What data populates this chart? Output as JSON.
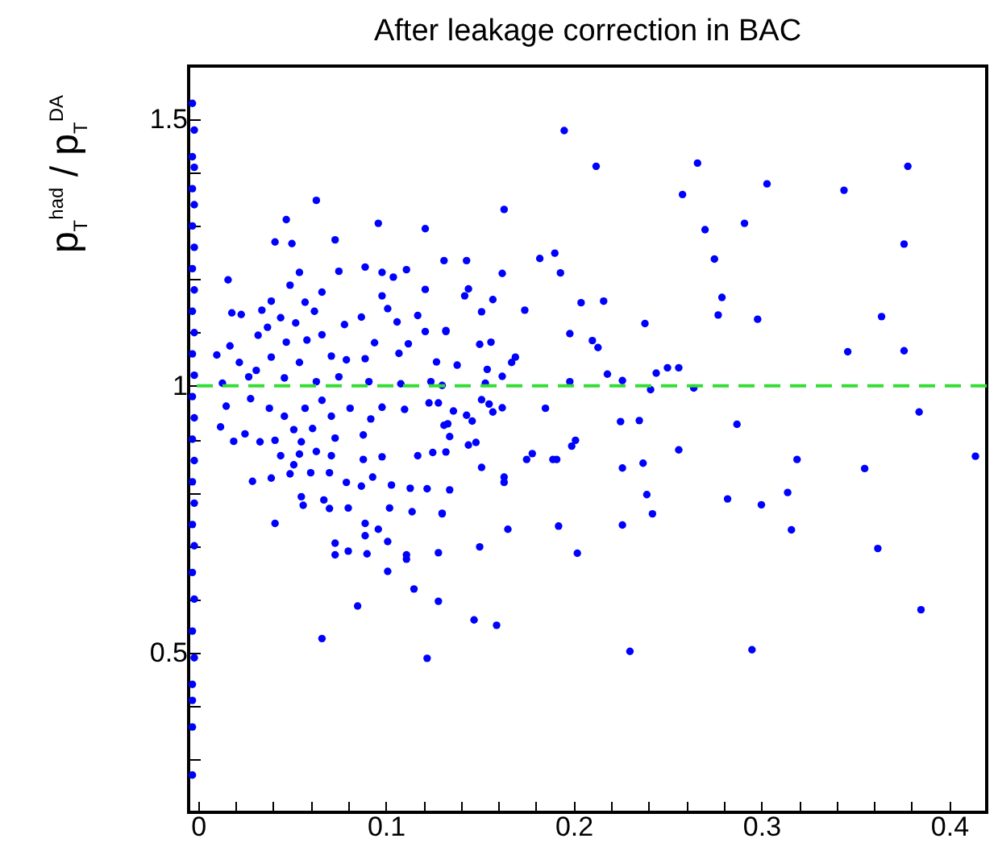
{
  "chart_data": {
    "type": "scatter",
    "title": "After leakage correction in BAC",
    "ylabel": "p$_{T}$$^{had}$ / p$_{T}$$^{DA}$",
    "xlim": [
      -0.005,
      0.42
    ],
    "ylim": [
      0.2,
      1.6
    ],
    "xticks": [
      0,
      {
        "value": 0.02,
        "label": null
      },
      {
        "value": 0.04,
        "label": null
      },
      {
        "value": 0.06,
        "label": null
      },
      {
        "value": 0.08,
        "label": null
      },
      0.1,
      {
        "value": 0.12,
        "label": null
      },
      {
        "value": 0.14,
        "label": null
      },
      {
        "value": 0.16,
        "label": null
      },
      {
        "value": 0.18,
        "label": null
      },
      0.2,
      {
        "value": 0.22,
        "label": null
      },
      {
        "value": 0.24,
        "label": null
      },
      {
        "value": 0.26,
        "label": null
      },
      {
        "value": 0.28,
        "label": null
      },
      0.3,
      {
        "value": 0.32,
        "label": null
      },
      {
        "value": 0.34,
        "label": null
      },
      {
        "value": 0.36,
        "label": null
      },
      {
        "value": 0.38,
        "label": null
      },
      0.4
    ],
    "yticks": [
      {
        "value": 0.3,
        "label": null
      },
      {
        "value": 0.4,
        "label": null
      },
      0.5,
      {
        "value": 0.6,
        "label": null
      },
      {
        "value": 0.7,
        "label": null
      },
      {
        "value": 0.8,
        "label": null
      },
      {
        "value": 0.9,
        "label": null
      },
      1,
      {
        "value": 1.1,
        "label": null
      },
      {
        "value": 1.2,
        "label": null
      },
      {
        "value": 1.3,
        "label": null
      },
      {
        "value": 1.4,
        "label": null
      },
      1.5
    ],
    "marker": "circle",
    "ref_lines": [
      {
        "axis": "y",
        "value": 1,
        "color": "#33dd33",
        "line_style": "dashed"
      }
    ],
    "series": [
      {
        "color": "#0000ff",
        "x": [
          -0.003,
          -0.002,
          -0.003,
          -0.002,
          -0.003,
          -0.002,
          -0.003,
          -0.002,
          -0.003,
          -0.002,
          -0.003,
          -0.002,
          -0.003,
          -0.002,
          -0.003,
          -0.002,
          -0.003,
          -0.002,
          -0.003,
          -0.002,
          -0.003,
          -0.002,
          -0.003,
          -0.002,
          -0.003,
          -0.002,
          -0.003,
          -0.003,
          -0.003,
          -0.003,
          0.303,
          0.344,
          0.378,
          0.291,
          0.275,
          0.376,
          0.279,
          0.277,
          0.298,
          0.364,
          0.346,
          0.376,
          0.287,
          0.384,
          0.414,
          0.319,
          0.355,
          0.282,
          0.3,
          0.314,
          0.316,
          0.362,
          0.385,
          0.295,
          0.195,
          0.212,
          0.266,
          0.163,
          0.258,
          0.27,
          0.131,
          0.143,
          0.182,
          0.19,
          0.193,
          0.162,
          0.144,
          0.142,
          0.157,
          0.151,
          0.174,
          0.204,
          0.216,
          0.132,
          0.198,
          0.21,
          0.213,
          0.238,
          0.15,
          0.156,
          0.169,
          0.167,
          0.138,
          0.154,
          0.162,
          0.218,
          0.226,
          0.244,
          0.25,
          0.256,
          0.241,
          0.264,
          0.198,
          0.153,
          0.13,
          0.128,
          0.151,
          0.185,
          0.155,
          0.157,
          0.162,
          0.136,
          0.143,
          0.146,
          0.133,
          0.225,
          0.235,
          0.134,
          0.148,
          0.144,
          0.201,
          0.199,
          0.132,
          0.151,
          0.163,
          0.163,
          0.175,
          0.178,
          0.189,
          0.191,
          0.226,
          0.237,
          0.256,
          0.134,
          0.239,
          0.13,
          0.242,
          0.165,
          0.192,
          0.226,
          0.128,
          0.15,
          0.202,
          0.128,
          0.147,
          0.159,
          0.23,
          0.063,
          0.047,
          0.041,
          0.05,
          0.073,
          0.096,
          0.121,
          0.016,
          0.054,
          0.049,
          0.075,
          0.089,
          0.098,
          0.111,
          0.104,
          0.066,
          0.039,
          0.057,
          0.098,
          0.121,
          0.018,
          0.023,
          0.034,
          0.044,
          0.062,
          0.087,
          0.101,
          0.117,
          0.037,
          0.052,
          0.078,
          0.106,
          0.121,
          0.132,
          0.01,
          0.017,
          0.032,
          0.047,
          0.058,
          0.066,
          0.094,
          0.112,
          0.022,
          0.031,
          0.039,
          0.054,
          0.071,
          0.079,
          0.089,
          0.107,
          0.127,
          0.013,
          0.027,
          0.046,
          0.063,
          0.075,
          0.091,
          0.108,
          0.124,
          0.015,
          0.012,
          0.019,
          0.025,
          0.033,
          0.028,
          0.038,
          0.041,
          0.046,
          0.051,
          0.057,
          0.055,
          0.061,
          0.066,
          0.071,
          0.073,
          0.081,
          0.088,
          0.092,
          0.098,
          0.11,
          0.123,
          0.131,
          0.044,
          0.054,
          0.063,
          0.071,
          0.088,
          0.098,
          0.117,
          0.125,
          0.051,
          0.06,
          0.07,
          0.093,
          0.029,
          0.039,
          0.049,
          0.079,
          0.087,
          0.103,
          0.113,
          0.122,
          0.055,
          0.067,
          0.056,
          0.07,
          0.08,
          0.102,
          0.114,
          0.13,
          0.041,
          0.089,
          0.096,
          0.089,
          0.073,
          0.073,
          0.08,
          0.09,
          0.101,
          0.111,
          0.111,
          0.101,
          0.115,
          0.085,
          0.066,
          0.122
        ],
        "values": [
          1.53,
          1.48,
          1.43,
          1.41,
          1.37,
          1.34,
          1.3,
          1.26,
          1.22,
          1.18,
          1.14,
          1.1,
          1.06,
          1.02,
          0.98,
          0.94,
          0.9,
          0.86,
          0.82,
          0.78,
          0.74,
          0.7,
          0.65,
          0.6,
          0.54,
          0.49,
          0.44,
          0.41,
          0.36,
          0.27,
          1.379,
          1.367,
          1.412,
          1.305,
          1.238,
          1.266,
          1.166,
          1.133,
          1.125,
          1.13,
          1.064,
          1.066,
          0.928,
          0.951,
          0.868,
          0.862,
          0.845,
          0.788,
          0.777,
          0.8,
          0.73,
          0.695,
          0.58,
          0.505,
          1.479,
          1.412,
          1.418,
          1.331,
          1.359,
          1.293,
          1.235,
          1.235,
          1.239,
          1.249,
          1.212,
          1.211,
          1.182,
          1.169,
          1.162,
          1.139,
          1.142,
          1.156,
          1.159,
          1.104,
          1.098,
          1.085,
          1.072,
          1.117,
          1.078,
          1.082,
          1.054,
          1.044,
          1.039,
          1.031,
          1.018,
          1.022,
          1.01,
          1.024,
          1.034,
          1.034,
          0.993,
          0.996,
          1.008,
          1.005,
          1.001,
          0.968,
          0.974,
          0.958,
          0.966,
          0.951,
          0.959,
          0.953,
          0.945,
          0.934,
          0.929,
          0.933,
          0.935,
          0.905,
          0.894,
          0.889,
          0.898,
          0.887,
          0.876,
          0.847,
          0.829,
          0.819,
          0.862,
          0.873,
          0.862,
          0.862,
          0.846,
          0.855,
          0.88,
          0.805,
          0.796,
          0.761,
          0.76,
          0.731,
          0.737,
          0.739,
          0.687,
          0.698,
          0.686,
          0.596,
          0.561,
          0.551,
          0.502,
          1.348,
          1.312,
          1.27,
          1.267,
          1.274,
          1.305,
          1.295,
          1.199,
          1.213,
          1.189,
          1.215,
          1.223,
          1.213,
          1.218,
          1.204,
          1.176,
          1.159,
          1.157,
          1.169,
          1.181,
          1.137,
          1.134,
          1.142,
          1.128,
          1.14,
          1.129,
          1.145,
          1.132,
          1.11,
          1.118,
          1.115,
          1.12,
          1.102,
          1.102,
          1.058,
          1.075,
          1.095,
          1.082,
          1.086,
          1.096,
          1.081,
          1.079,
          1.044,
          1.029,
          1.054,
          1.044,
          1.056,
          1.049,
          1.051,
          1.061,
          1.045,
          1.005,
          1.017,
          1.015,
          1.008,
          1.017,
          1.008,
          1.004,
          1.008,
          0.962,
          0.923,
          0.896,
          0.91,
          0.895,
          0.976,
          0.958,
          0.898,
          0.943,
          0.918,
          0.958,
          0.895,
          0.92,
          0.973,
          0.943,
          0.902,
          0.958,
          0.908,
          0.938,
          0.96,
          0.956,
          0.968,
          0.926,
          0.869,
          0.872,
          0.877,
          0.869,
          0.862,
          0.867,
          0.869,
          0.875,
          0.852,
          0.837,
          0.837,
          0.829,
          0.821,
          0.827,
          0.835,
          0.819,
          0.812,
          0.814,
          0.808,
          0.807,
          0.792,
          0.786,
          0.776,
          0.77,
          0.771,
          0.771,
          0.764,
          0.76,
          0.742,
          0.742,
          0.731,
          0.719,
          0.705,
          0.683,
          0.69,
          0.685,
          0.708,
          0.683,
          0.675,
          0.652,
          0.619,
          0.587,
          0.526,
          0.489
        ]
      }
    ]
  }
}
